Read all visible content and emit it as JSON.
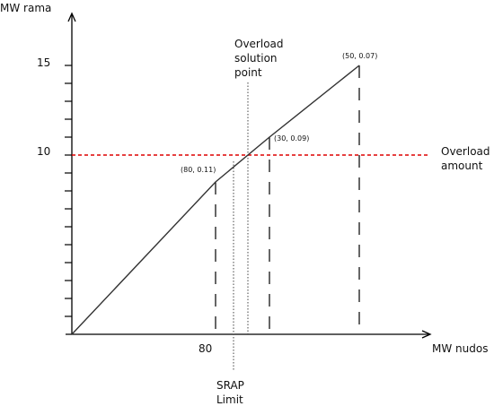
{
  "chart_data": {
    "type": "line",
    "ylabel": "MW rama",
    "xlabel": "MW nudos",
    "y_tick_labels": [
      {
        "value": 15,
        "text": "15"
      },
      {
        "value": 10,
        "text": "10"
      }
    ],
    "x_tick_labels": [
      {
        "value": 80,
        "text": "80"
      }
    ],
    "ylim": [
      0,
      15
    ],
    "series": [
      {
        "points": [
          {
            "label": "",
            "y": 0
          },
          {
            "label": "(80, 0.11)",
            "y": 8.5
          },
          {
            "label": "(30, 0.09)",
            "y": 11
          },
          {
            "label": "(50, 0.07)",
            "y": 15
          }
        ]
      }
    ],
    "reference_lines": {
      "overload_amount": {
        "y": 10,
        "label_lines": [
          "Overload",
          "amount"
        ],
        "color": "#dd0000"
      },
      "overload_solution_point": {
        "label_lines": [
          "Overload",
          "solution",
          "point"
        ]
      },
      "srap_limit": {
        "label_lines": [
          "SRAP",
          "Limit"
        ]
      }
    },
    "grid": false,
    "legend": "none"
  }
}
